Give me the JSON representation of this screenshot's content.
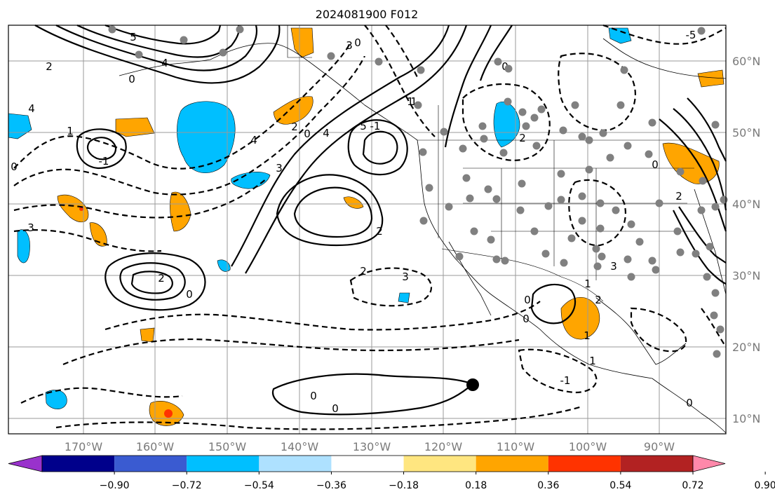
{
  "title": "2024081900 F012",
  "map": {
    "lon_labels": [
      "170°W",
      "160°W",
      "150°W",
      "140°W",
      "130°W",
      "120°W",
      "110°W",
      "100°W",
      "90°W"
    ],
    "lat_labels": [
      "60°N",
      "50°N",
      "40°N",
      "30°N",
      "20°N",
      "10°N"
    ],
    "lon_range": [
      -180,
      -80
    ],
    "lat_range": [
      8,
      66
    ],
    "grid": true,
    "contour_labels": [
      "5",
      "4",
      "2",
      "0",
      "-1",
      "2",
      "0",
      "3",
      "4",
      "1",
      "0",
      "4",
      "2",
      "3",
      "0",
      "4",
      "5",
      "-1",
      "2",
      "3",
      "0",
      "2",
      "3",
      "0",
      "0",
      "0",
      "2",
      "1",
      "1",
      "-1",
      "0",
      "2",
      "0",
      "1",
      "2",
      "3",
      "0",
      "1",
      "1",
      "0",
      "-5"
    ],
    "point_marker_color": "#000000",
    "station_dot_color": "#808080"
  },
  "colorbar": {
    "ticks": [
      "−0.90",
      "−0.72",
      "−0.54",
      "−0.36",
      "−0.18",
      "0.18",
      "0.36",
      "0.54",
      "0.72",
      "0.90"
    ],
    "colors": [
      "#9932cc",
      "#00008b",
      "#3a5bd1",
      "#00bfff",
      "#aee1ff",
      "#ffffff",
      "#ffe680",
      "#ffa500",
      "#ff3300",
      "#b22222",
      "#ff88aa"
    ]
  }
}
